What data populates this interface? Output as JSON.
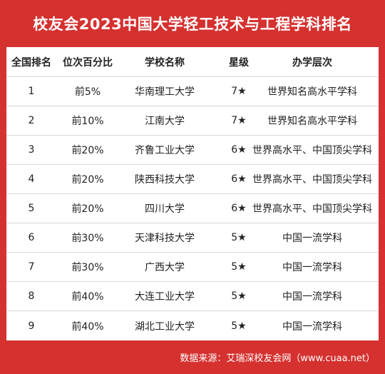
{
  "title": "校友会2023中国大学轻工技术与工程学科排名",
  "table": {
    "headers": [
      "全国排名",
      "位次百分比",
      "学校名称",
      "星级",
      "办学层次"
    ],
    "rows": [
      {
        "rank": "1",
        "percent": "前5%",
        "school": "华南理工大学",
        "stars": "7★",
        "level": "世界知名高水平学科"
      },
      {
        "rank": "2",
        "percent": "前10%",
        "school": "江南大学",
        "stars": "7★",
        "level": "世界知名高水平学科"
      },
      {
        "rank": "3",
        "percent": "前20%",
        "school": "齐鲁工业大学",
        "stars": "6★",
        "level": "世界高水平、中国顶尖学科"
      },
      {
        "rank": "4",
        "percent": "前20%",
        "school": "陕西科技大学",
        "stars": "6★",
        "level": "世界高水平、中国顶尖学科"
      },
      {
        "rank": "5",
        "percent": "前20%",
        "school": "四川大学",
        "stars": "6★",
        "level": "世界高水平、中国顶尖学科"
      },
      {
        "rank": "6",
        "percent": "前30%",
        "school": "天津科技大学",
        "stars": "5★",
        "level": "中国一流学科"
      },
      {
        "rank": "7",
        "percent": "前30%",
        "school": "广西大学",
        "stars": "5★",
        "level": "中国一流学科"
      },
      {
        "rank": "8",
        "percent": "前40%",
        "school": "大连工业大学",
        "stars": "5★",
        "level": "中国一流学科"
      },
      {
        "rank": "9",
        "percent": "前40%",
        "school": "湖北工业大学",
        "stars": "5★",
        "level": "中国一流学科"
      }
    ]
  },
  "footer": "数据来源：艾瑞深校友会网（www.cuaa.net）"
}
